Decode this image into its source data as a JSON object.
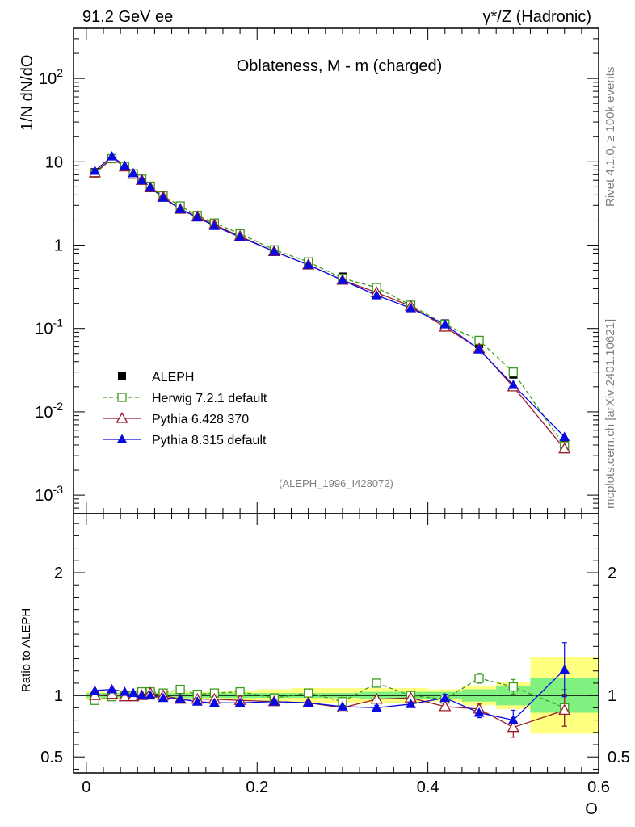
{
  "header": {
    "left": "91.2 GeV ee",
    "right": "γ*/Z (Hadronic)",
    "side_top": "Rivet 4.1.0, ≥ 100k events",
    "side_bottom": "mcplots.cern.ch [arXiv:2401.10621]"
  },
  "colors": {
    "data": "#000000",
    "herwig": "#3a9a1a",
    "pythia6": "#9b1b2a",
    "pythia8": "#0a0ae0",
    "band_inner": "#80f080",
    "band_outer": "#ffff80"
  },
  "chart_data": [
    {
      "type": "line",
      "title": "Oblateness, M - m (charged)",
      "analysis_tag": "(ALEPH_1996_I428072)",
      "ylabel": "1/N  dN/dO",
      "yscale": "log",
      "ylim": [
        0.0006,
        400
      ],
      "xlim": [
        -0.015,
        0.6
      ],
      "y_tick_labels": [
        "10^-3",
        "10^-2",
        "10^-1",
        "1",
        "10",
        "10^2"
      ],
      "x": [
        0.01,
        0.03,
        0.045,
        0.055,
        0.065,
        0.075,
        0.09,
        0.11,
        0.13,
        0.15,
        0.18,
        0.22,
        0.26,
        0.3,
        0.34,
        0.38,
        0.42,
        0.46,
        0.5,
        0.56
      ],
      "series": [
        {
          "name": "ALEPH",
          "style": "data-square",
          "values": [
            7.5,
            11.0,
            8.8,
            7.2,
            6.0,
            4.9,
            3.8,
            2.8,
            2.25,
            1.8,
            1.33,
            0.88,
            0.62,
            0.42,
            0.28,
            0.19,
            0.115,
            0.065,
            0.028,
            0.0043
          ]
        },
        {
          "name": "Herwig 7.2.1 default",
          "style": "open-square-dashed",
          "values": [
            7.2,
            10.9,
            8.8,
            7.2,
            6.2,
            5.1,
            3.9,
            2.95,
            2.27,
            1.84,
            1.37,
            0.88,
            0.63,
            0.4,
            0.31,
            0.19,
            0.112,
            0.072,
            0.03,
            0.0039
          ]
        },
        {
          "name": "Pythia 6.428 370",
          "style": "open-triangle",
          "values": [
            7.4,
            11.1,
            8.7,
            7.1,
            6.0,
            4.9,
            3.8,
            2.7,
            2.2,
            1.75,
            1.28,
            0.84,
            0.58,
            0.38,
            0.27,
            0.185,
            0.104,
            0.057,
            0.02,
            0.0036
          ]
        },
        {
          "name": "Pythia 8.315 default",
          "style": "filled-triangle",
          "values": [
            7.8,
            11.6,
            9.0,
            7.3,
            6.0,
            4.9,
            3.7,
            2.7,
            2.15,
            1.7,
            1.25,
            0.84,
            0.58,
            0.38,
            0.25,
            0.175,
            0.112,
            0.056,
            0.021,
            0.005
          ]
        }
      ]
    },
    {
      "type": "line",
      "ylabel": "Ratio to ALEPH",
      "xlabel": "O",
      "ylim": [
        0.37,
        2.48
      ],
      "xlim": [
        -0.015,
        0.6
      ],
      "y_tick_labels": [
        "0.5",
        "1",
        "2"
      ],
      "x_tick_labels": [
        "0",
        "0.2",
        "0.4",
        "0.6"
      ],
      "x": [
        0.01,
        0.03,
        0.045,
        0.055,
        0.065,
        0.075,
        0.09,
        0.11,
        0.13,
        0.15,
        0.18,
        0.22,
        0.26,
        0.3,
        0.34,
        0.38,
        0.42,
        0.46,
        0.5,
        0.56
      ],
      "uncertainty_bins": [
        {
          "x0": 0.0,
          "x1": 0.02,
          "inner": 0.02,
          "outer": 0.04
        },
        {
          "x0": 0.02,
          "x1": 0.04,
          "inner": 0.02,
          "outer": 0.03
        },
        {
          "x0": 0.04,
          "x1": 0.05,
          "inner": 0.02,
          "outer": 0.03
        },
        {
          "x0": 0.05,
          "x1": 0.06,
          "inner": 0.02,
          "outer": 0.03
        },
        {
          "x0": 0.06,
          "x1": 0.07,
          "inner": 0.02,
          "outer": 0.03
        },
        {
          "x0": 0.07,
          "x1": 0.08,
          "inner": 0.02,
          "outer": 0.03
        },
        {
          "x0": 0.08,
          "x1": 0.1,
          "inner": 0.02,
          "outer": 0.03
        },
        {
          "x0": 0.1,
          "x1": 0.12,
          "inner": 0.02,
          "outer": 0.03
        },
        {
          "x0": 0.12,
          "x1": 0.14,
          "inner": 0.02,
          "outer": 0.03
        },
        {
          "x0": 0.14,
          "x1": 0.16,
          "inner": 0.02,
          "outer": 0.03
        },
        {
          "x0": 0.16,
          "x1": 0.2,
          "inner": 0.02,
          "outer": 0.04
        },
        {
          "x0": 0.2,
          "x1": 0.24,
          "inner": 0.02,
          "outer": 0.05
        },
        {
          "x0": 0.24,
          "x1": 0.28,
          "inner": 0.02,
          "outer": 0.06
        },
        {
          "x0": 0.28,
          "x1": 0.32,
          "inner": 0.02,
          "outer": 0.06
        },
        {
          "x0": 0.32,
          "x1": 0.36,
          "inner": 0.03,
          "outer": 0.06
        },
        {
          "x0": 0.36,
          "x1": 0.4,
          "inner": 0.03,
          "outer": 0.06
        },
        {
          "x0": 0.4,
          "x1": 0.44,
          "inner": 0.03,
          "outer": 0.05
        },
        {
          "x0": 0.44,
          "x1": 0.48,
          "inner": 0.05,
          "outer": 0.08
        },
        {
          "x0": 0.48,
          "x1": 0.52,
          "inner": 0.08,
          "outer": 0.11
        },
        {
          "x0": 0.52,
          "x1": 0.6,
          "inner": 0.14,
          "outer": 0.31
        }
      ],
      "series": [
        {
          "name": "Herwig 7.2.1 default",
          "style": "open-square-dashed",
          "values": [
            0.96,
            0.99,
            1.0,
            1.0,
            1.03,
            1.03,
            1.02,
            1.05,
            1.01,
            1.02,
            1.03,
            0.98,
            1.02,
            0.95,
            1.1,
            1.0,
            0.97,
            1.14,
            1.07,
            0.9
          ],
          "errors": [
            0,
            0,
            0,
            0,
            0,
            0,
            0,
            0,
            0,
            0,
            0,
            0,
            0,
            0,
            0,
            0,
            0.02,
            0.04,
            0.06,
            0.15
          ]
        },
        {
          "name": "Pythia 6.428 370",
          "style": "open-triangle",
          "values": [
            1.0,
            1.01,
            0.99,
            0.99,
            1.0,
            1.02,
            1.0,
            0.97,
            0.97,
            0.97,
            0.96,
            0.95,
            0.94,
            0.9,
            0.97,
            0.98,
            0.91,
            0.89,
            0.74,
            0.88
          ],
          "errors": [
            0,
            0,
            0,
            0,
            0,
            0,
            0,
            0,
            0,
            0,
            0,
            0,
            0,
            0,
            0,
            0.02,
            0.03,
            0.04,
            0.08,
            0.13
          ]
        },
        {
          "name": "Pythia 8.315 default",
          "style": "filled-triangle",
          "values": [
            1.04,
            1.05,
            1.03,
            1.02,
            1.0,
            1.0,
            0.98,
            0.97,
            0.95,
            0.94,
            0.94,
            0.95,
            0.94,
            0.91,
            0.9,
            0.93,
            0.98,
            0.86,
            0.8,
            1.21
          ],
          "errors": [
            0,
            0,
            0,
            0,
            0,
            0,
            0,
            0,
            0,
            0,
            0,
            0,
            0,
            0.01,
            0.02,
            0.02,
            0.03,
            0.04,
            0.08,
            0.22
          ]
        }
      ]
    }
  ]
}
